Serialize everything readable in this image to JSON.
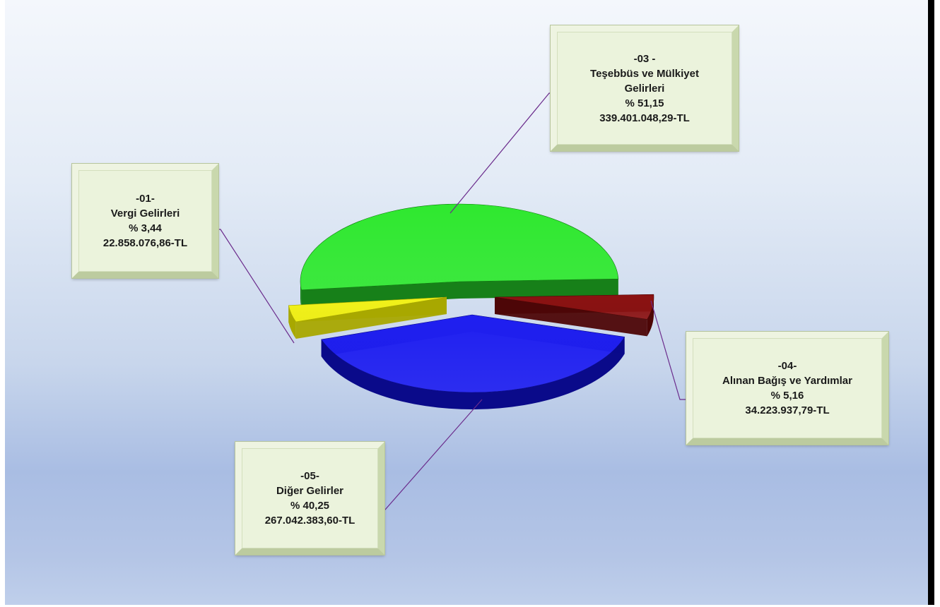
{
  "chart_data": {
    "type": "pie",
    "three_d": true,
    "exploded_slices": true,
    "slices": [
      {
        "code": "-03 -",
        "name": "Teşebbüs ve Mülkiyet Gelirleri",
        "name_lines": [
          "Teşebbüs ve Mülkiyet",
          "Gelirleri"
        ],
        "percent_label": "% 51,15",
        "percent": 51.15,
        "amount_label": "339.401.048,29-TL",
        "color": "#2fe82f"
      },
      {
        "code": "-04-",
        "name": "Alınan Bağış ve Yardımlar",
        "name_lines": [
          "Alınan Bağış ve Yardımlar"
        ],
        "percent_label": "% 5,16",
        "percent": 5.16,
        "amount_label": "34.223.937,79-TL",
        "color": "#8b1212"
      },
      {
        "code": "-05-",
        "name": "Diğer Gelirler",
        "name_lines": [
          "Diğer Gelirler"
        ],
        "percent_label": "% 40,25",
        "percent": 40.25,
        "amount_label": "267.042.383,60-TL",
        "color": "#1f1ff0"
      },
      {
        "code": "-01-",
        "name": "Vergi Gelirleri",
        "name_lines": [
          "Vergi Gelirleri"
        ],
        "percent_label": "% 3,44",
        "percent": 3.44,
        "amount_label": "22.858.076,86-TL",
        "color": "#f2f21a"
      }
    ],
    "leader_line_color": "#6b2c8c",
    "background_colors": [
      "#f4f7fc",
      "#a9bde3"
    ],
    "label_box_color": "#ebf3dc"
  }
}
